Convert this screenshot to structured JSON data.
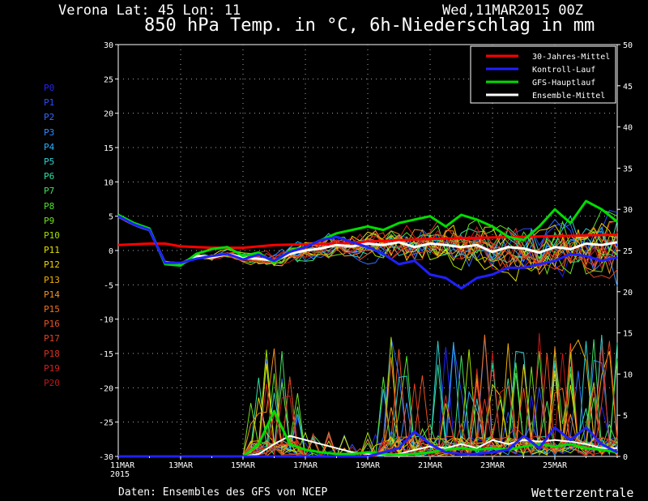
{
  "header": {
    "station": "Verona   Lat: 45 Lon: 11",
    "date": "Wed,11MAR2015 00Z",
    "title": "850 hPa Temp. in °C, 6h-Niederschlag in mm"
  },
  "footer": {
    "source": "Daten: Ensembles des GFS von NCEP",
    "brand": "Wetterzentrale"
  },
  "members": [
    "P0",
    "P1",
    "P2",
    "P3",
    "P4",
    "P5",
    "P6",
    "P7",
    "P8",
    "P9",
    "P10",
    "P11",
    "P12",
    "P13",
    "P14",
    "P15",
    "P16",
    "P17",
    "P18",
    "P19",
    "P20"
  ],
  "member_colors": [
    "#2222ff",
    "#2a4dff",
    "#2f6cff",
    "#2f8cff",
    "#2ab0ff",
    "#30d0d0",
    "#30e0a0",
    "#40e060",
    "#50e030",
    "#70e020",
    "#a0e000",
    "#e0e000",
    "#f0d000",
    "#f0b000",
    "#f09020",
    "#f07020",
    "#f05020",
    "#e04020",
    "#e03020",
    "#d02020",
    "#c01818"
  ],
  "chart_data": {
    "type": "line",
    "x_tick_labels": [
      "11MAR\n2015",
      "13MAR",
      "15MAR",
      "17MAR",
      "19MAR",
      "21MAR",
      "23MAR",
      "25MAR"
    ],
    "x_range_days": [
      0,
      16
    ],
    "y_left": {
      "range": [
        -30,
        30
      ],
      "ticks": [
        30,
        25,
        20,
        15,
        10,
        5,
        0,
        -5,
        -10,
        -15,
        -20,
        -25,
        -30
      ]
    },
    "y_right": {
      "range": [
        0,
        50
      ],
      "ticks": [
        50,
        45,
        40,
        35,
        30,
        25,
        20,
        15,
        10,
        5,
        0
      ]
    },
    "legend": {
      "position": "top-right",
      "entries": [
        {
          "label": "30-Jahres-Mittel",
          "color": "#ff0000"
        },
        {
          "label": "Kontroll-Lauf",
          "color": "#2020ff"
        },
        {
          "label": "GFS-Hauptlauf",
          "color": "#00dd00"
        },
        {
          "label": "Ensemble-Mittel",
          "color": "#ffffff"
        }
      ]
    },
    "grid": true,
    "series": [
      {
        "name": "30-Jahres-Mittel",
        "axis": "left",
        "color": "#ff0000",
        "width": 3,
        "x": [
          0,
          1,
          1.5,
          2,
          3,
          4,
          5,
          6,
          7,
          8,
          9,
          10,
          11,
          12,
          13,
          14,
          15,
          16
        ],
        "y": [
          0.8,
          1.0,
          1.0,
          0.6,
          0.4,
          0.4,
          0.8,
          0.9,
          1.0,
          1.3,
          1.5,
          1.7,
          1.8,
          1.9,
          2.0,
          2.1,
          2.2,
          2.3
        ]
      },
      {
        "name": "Ensemble-Mittel",
        "axis": "left",
        "color": "#ffffff",
        "width": 3,
        "x": [
          0,
          0.5,
          1,
          1.5,
          2,
          2.5,
          3,
          3.5,
          4,
          4.5,
          5,
          5.5,
          6,
          6.5,
          7,
          7.5,
          8,
          8.5,
          9,
          9.5,
          10,
          10.5,
          11,
          11.5,
          12,
          12.5,
          13,
          13.5,
          14,
          14.5,
          15,
          15.5,
          16
        ],
        "y": [
          5,
          3.8,
          3,
          -1.8,
          -2,
          -0.8,
          -1,
          -0.5,
          -1,
          -1.2,
          -1.5,
          -0.5,
          0,
          0.3,
          0.8,
          0.6,
          1,
          0.8,
          1.2,
          0.5,
          1,
          0.8,
          0.5,
          0.8,
          -0.2,
          0.5,
          0.3,
          -0.3,
          0.5,
          0.2,
          1,
          0.8,
          1.2
        ]
      },
      {
        "name": "GFS-Hauptlauf",
        "axis": "left",
        "color": "#00dd00",
        "width": 3,
        "x": [
          0,
          0.5,
          1,
          1.5,
          2,
          2.5,
          3,
          3.5,
          4,
          4.5,
          5,
          5.5,
          6,
          6.5,
          7,
          7.5,
          8,
          8.5,
          9,
          9.5,
          10,
          10.5,
          11,
          11.5,
          12,
          12.5,
          13,
          13.5,
          14,
          14.5,
          15,
          15.5,
          16
        ],
        "y": [
          5.2,
          4,
          3.2,
          -2,
          -2.2,
          -0.5,
          0.2,
          0.5,
          -0.8,
          -0.3,
          -1.8,
          0,
          0.5,
          1.5,
          2.5,
          3,
          3.5,
          3,
          4,
          4.5,
          5,
          3.5,
          5.2,
          4.5,
          3.5,
          2,
          1.5,
          3.5,
          6,
          4,
          7.2,
          6,
          4.2
        ]
      },
      {
        "name": "Kontroll-Lauf",
        "axis": "left",
        "color": "#2020ff",
        "width": 3,
        "x": [
          0,
          0.5,
          1,
          1.5,
          2,
          2.5,
          3,
          3.5,
          4,
          4.5,
          5,
          5.5,
          6,
          6.5,
          7,
          7.5,
          8,
          8.5,
          9,
          9.5,
          10,
          10.5,
          11,
          11.5,
          12,
          12.5,
          13,
          13.5,
          14,
          14.5,
          15,
          15.5,
          16
        ],
        "y": [
          5,
          3.8,
          3,
          -1.8,
          -1.8,
          -1.2,
          -0.8,
          -0.5,
          -1.3,
          -0.6,
          -1.5,
          -0.2,
          0.5,
          1.5,
          2,
          1.2,
          0.5,
          -0.5,
          -2,
          -1.5,
          -3.5,
          -4,
          -5.5,
          -4,
          -3.5,
          -2.5,
          -2.5,
          -2,
          -1.5,
          -0.5,
          -0.8,
          -1.5,
          -1
        ]
      },
      {
        "name": "Ensemble-Mittel Niederschlag",
        "axis": "right",
        "color": "#ffffff",
        "width": 2,
        "x": [
          0,
          4,
          4.5,
          5,
          5.5,
          6,
          6.5,
          7,
          7.5,
          8,
          8.5,
          9,
          9.5,
          10,
          10.5,
          11,
          11.5,
          12,
          12.5,
          13,
          13.5,
          14,
          14.5,
          15,
          15.5,
          16
        ],
        "y": [
          0,
          0,
          0.3,
          1.5,
          2.5,
          2,
          1.5,
          1,
          0.5,
          0.3,
          0.2,
          0.3,
          0.8,
          1.2,
          1,
          1.5,
          1,
          2,
          1.5,
          2,
          1.8,
          2,
          1.8,
          1.5,
          1,
          1
        ]
      },
      {
        "name": "GFS-Hauptlauf Niederschlag",
        "axis": "right",
        "color": "#00dd00",
        "width": 3,
        "x": [
          0,
          4,
          4.5,
          5,
          5.5,
          6,
          6.5,
          7,
          7.5,
          8,
          8.5,
          9,
          9.5,
          10,
          10.5,
          11,
          11.5,
          12,
          12.5,
          13,
          13.5,
          14,
          14.5,
          15,
          15.5,
          16
        ],
        "y": [
          0,
          0,
          1.5,
          5.5,
          1.5,
          0.8,
          0.5,
          0.3,
          0.3,
          0.5,
          0.3,
          0.2,
          0.3,
          0.5,
          0.8,
          1,
          0.8,
          1,
          0.8,
          1.2,
          1.5,
          1.2,
          1.5,
          1,
          0.8,
          0.5
        ]
      },
      {
        "name": "Kontroll-Lauf Niederschlag",
        "axis": "right",
        "color": "#2020ff",
        "width": 3,
        "x": [
          0,
          8,
          8.5,
          9,
          9.5,
          10,
          10.5,
          11,
          11.5,
          12,
          12.5,
          13,
          13.5,
          14,
          14.5,
          15,
          15.5,
          16
        ],
        "y": [
          0,
          0,
          0.5,
          1,
          3,
          1.5,
          0.5,
          0.3,
          0.3,
          0.5,
          0.8,
          2.5,
          1,
          3.5,
          2,
          3.5,
          1.5,
          0.5
        ]
      }
    ]
  }
}
